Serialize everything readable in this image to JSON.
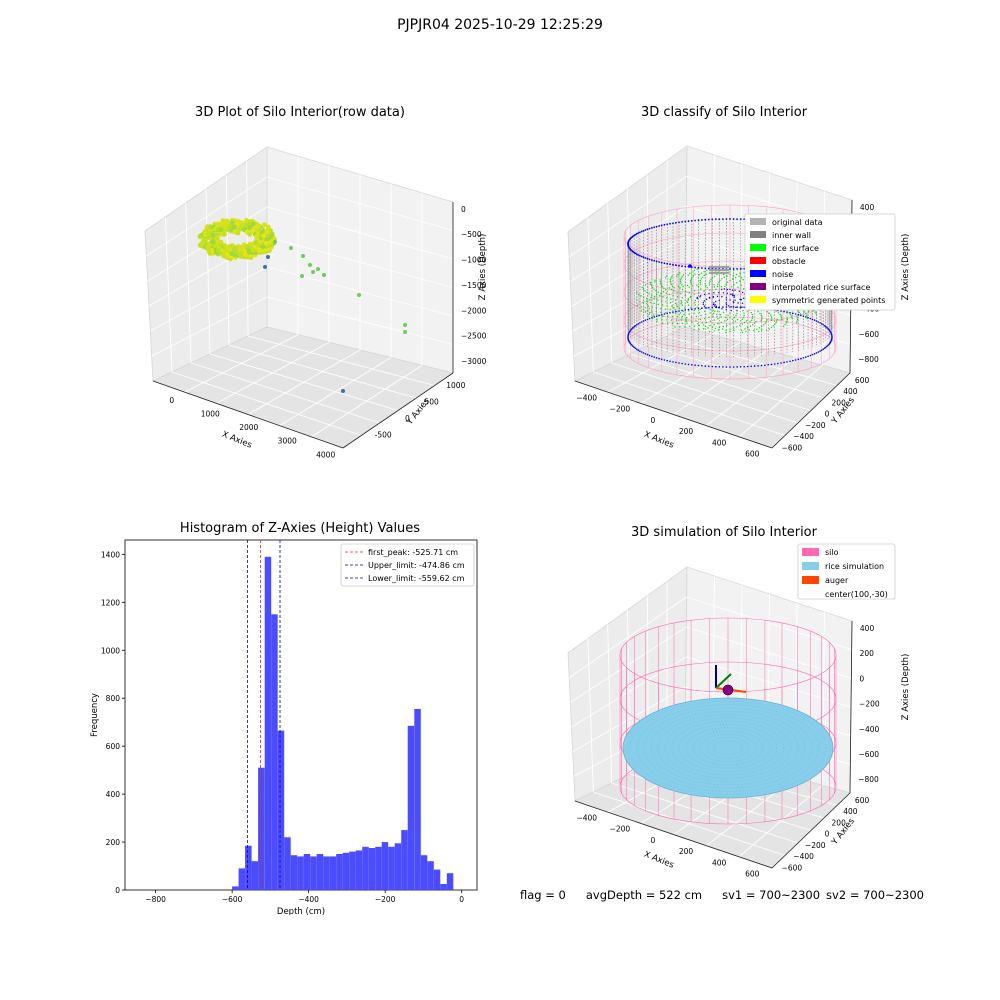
{
  "figure": {
    "suptitle": "PJPJR04 2025-10-29 12:25:29"
  },
  "chart_data": [
    {
      "type": "scatter",
      "projection": "3d",
      "title": "3D Plot of Silo Interior(row data)",
      "xlabel": "X Axies",
      "ylabel": "Y Axies",
      "zlabel": "Z Axies (Depth)",
      "x_ticks": [
        "0",
        "1000",
        "2000",
        "3000",
        "4000"
      ],
      "y_ticks": [
        "-500",
        "0",
        "500",
        "1000"
      ],
      "z_ticks": [
        "0",
        "−500",
        "−1000",
        "−1500",
        "−2000",
        "−2500",
        "−3000"
      ],
      "outliers": [
        {
          "x": 1000,
          "y": 300,
          "z": -1400
        },
        {
          "x": 1200,
          "y": 400,
          "z": -1500
        },
        {
          "x": 1400,
          "y": 350,
          "z": -1600
        },
        {
          "x": 2200,
          "y": 500,
          "z": -2000
        },
        {
          "x": 3500,
          "y": 600,
          "z": -2800
        },
        {
          "x": 3600,
          "y": 500,
          "z": -3000
        },
        {
          "x": 3800,
          "y": -400,
          "z": -3000
        }
      ],
      "colormap": "viridis"
    },
    {
      "type": "scatter",
      "projection": "3d",
      "title": "3D classify of Silo Interior",
      "xlabel": "X Axies",
      "ylabel": "Y Axies",
      "zlabel": "Z Axies (Depth)",
      "x_ticks": [
        "−400",
        "−200",
        "0",
        "200",
        "400",
        "600"
      ],
      "y_ticks": [
        "−600",
        "−400",
        "−200",
        "0",
        "200",
        "400",
        "600"
      ],
      "z_ticks": [
        "400",
        "200",
        "0",
        "−200",
        "−400",
        "−600",
        "−800"
      ],
      "legend": [
        {
          "label": "original data",
          "color": "#b3b3b3"
        },
        {
          "label": "inner wall",
          "color": "#808080"
        },
        {
          "label": "rice surface",
          "color": "#00ff00"
        },
        {
          "label": "obstacle",
          "color": "#ff0000"
        },
        {
          "label": "noise",
          "color": "#0000ff"
        },
        {
          "label": "interpolated rice surface",
          "color": "#800080"
        },
        {
          "label": "symmetric generated points",
          "color": "#ffff00"
        }
      ],
      "legend_loc": "upper right"
    },
    {
      "type": "bar",
      "title": "Histogram of Z-Axies (Height) Values",
      "xlabel": "Depth (cm)",
      "ylabel": "Frequency",
      "xlim": [
        -880,
        40
      ],
      "ylim": [
        0,
        1460
      ],
      "x_ticks": [
        -800,
        -600,
        -400,
        -200,
        0
      ],
      "y_ticks": [
        0,
        200,
        400,
        600,
        800,
        1000,
        1200,
        1400
      ],
      "bin_start": -600,
      "bin_width": 17,
      "values": [
        15,
        90,
        185,
        120,
        510,
        1390,
        1150,
        665,
        220,
        145,
        140,
        150,
        140,
        150,
        140,
        140,
        150,
        155,
        160,
        165,
        180,
        175,
        180,
        200,
        180,
        195,
        250,
        685,
        755,
        145,
        120,
        85,
        25,
        70
      ],
      "bar_color": "#4c4cff",
      "lines": [
        {
          "label": "first_peak: -525.71 cm",
          "value": -525.71,
          "color": "#d62728"
        },
        {
          "label": "Upper_limit: -474.86 cm",
          "value": -474.86,
          "color": "#0000cc"
        },
        {
          "label": "Lower_limit: -559.62 cm",
          "value": -559.62,
          "color": "#0000cc"
        }
      ],
      "legend_loc": "upper right"
    },
    {
      "type": "scatter",
      "projection": "3d",
      "title": "3D simulation of Silo Interior",
      "xlabel": "X Axies",
      "ylabel": "Y Axies",
      "zlabel": "Z Axies (Depth)",
      "x_ticks": [
        "−400",
        "−200",
        "0",
        "200",
        "400",
        "600"
      ],
      "y_ticks": [
        "−600",
        "−400",
        "−200",
        "0",
        "200",
        "400",
        "600"
      ],
      "z_ticks": [
        "400",
        "200",
        "0",
        "−200",
        "−400",
        "−600",
        "−800"
      ],
      "legend": [
        {
          "label": "silo",
          "color": "#ff69b4"
        },
        {
          "label": "rice simulation",
          "color": "#87ceeb"
        },
        {
          "label": "auger",
          "color": "#ff4500"
        },
        {
          "label": "center(100,-30)",
          "color": ""
        }
      ],
      "legend_loc": "upper right"
    }
  ],
  "footer": {
    "flag": "flag = 0",
    "avg_depth": "avgDepth = 522 cm",
    "sv1": "sv1 = 700~2300",
    "sv2": "sv2 = 700~2300"
  }
}
